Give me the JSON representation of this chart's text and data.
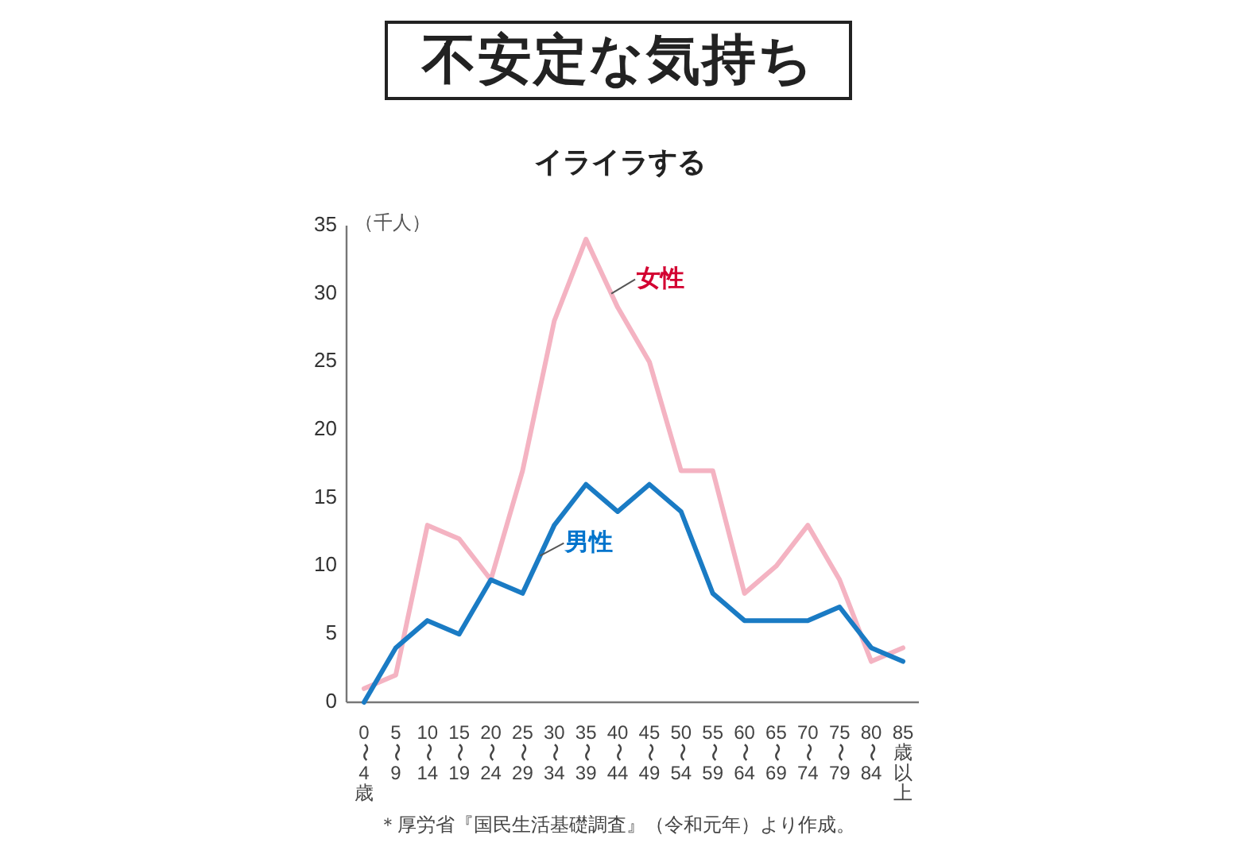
{
  "chart_data": {
    "type": "line",
    "title": "不安定な気持ち",
    "subtitle": "イライラする",
    "ylabel": "（千人）",
    "categories": [
      "0〜4歳",
      "5〜9",
      "10〜14",
      "15〜19",
      "20〜24",
      "25〜29",
      "30〜34",
      "35〜39",
      "40〜44",
      "45〜49",
      "50〜54",
      "55〜59",
      "60〜64",
      "65〜69",
      "70〜74",
      "75〜79",
      "80〜84",
      "85歳以上"
    ],
    "series": [
      {
        "name": "女性",
        "color": "#f4b3c2",
        "values": [
          1,
          2,
          13,
          12,
          9,
          17,
          28,
          34,
          29,
          25,
          17,
          17,
          8,
          10,
          13,
          9,
          3,
          4
        ]
      },
      {
        "name": "男性",
        "color": "#1a7bc4",
        "values": [
          0,
          4,
          6,
          5,
          9,
          8,
          13,
          16,
          14,
          16,
          14,
          8,
          6,
          6,
          6,
          7,
          4,
          3
        ]
      }
    ],
    "ylim": [
      0,
      35
    ],
    "yticks": [
      0,
      5,
      10,
      15,
      20,
      25,
      30,
      35
    ],
    "annotations": [
      "＊厚労省『国民生活基礎調査』（令和元年）より作成。"
    ]
  }
}
